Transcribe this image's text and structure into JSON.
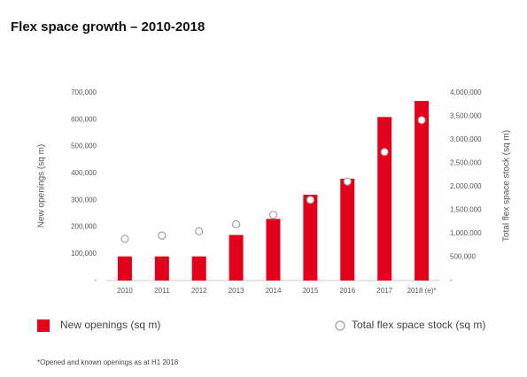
{
  "chart_data": {
    "type": "bar",
    "title": "Flex space growth – 2010-2018",
    "categories": [
      "2010",
      "2011",
      "2012",
      "2013",
      "2014",
      "2015",
      "2016",
      "2017",
      "2018 (e)*"
    ],
    "series": [
      {
        "name": "New openings (sq m)",
        "type": "bar",
        "color": "#e2001a",
        "values": [
          90000,
          90000,
          90000,
          170000,
          230000,
          320000,
          380000,
          610000,
          670000
        ]
      },
      {
        "name": "Total flex space stock (sq m)",
        "type": "scatter",
        "color": "#a0a0a0",
        "axis": "y2",
        "values": [
          890000,
          960000,
          1050000,
          1200000,
          1400000,
          1720000,
          2110000,
          2740000,
          3420000
        ]
      }
    ],
    "ylabel": "New openings (sq m)",
    "y2label": "Total flex space stock (sq m)",
    "ylim": [
      0,
      700000
    ],
    "yticks": [
      {
        "value": 0,
        "label": "-"
      },
      {
        "value": 100000,
        "label": "100,000"
      },
      {
        "value": 200000,
        "label": "200,000"
      },
      {
        "value": 300000,
        "label": "300,000"
      },
      {
        "value": 400000,
        "label": "400,000"
      },
      {
        "value": 500000,
        "label": "500,000"
      },
      {
        "value": 600000,
        "label": "600,000"
      },
      {
        "value": 700000,
        "label": "700,000"
      }
    ],
    "y2lim": [
      0,
      4000000
    ],
    "y2ticks": [
      {
        "value": 0,
        "label": "-"
      },
      {
        "value": 500000,
        "label": "500,000"
      },
      {
        "value": 1000000,
        "label": "1,000,000"
      },
      {
        "value": 1500000,
        "label": "1,500,000"
      },
      {
        "value": 2000000,
        "label": "2,000,000"
      },
      {
        "value": 2500000,
        "label": "2,500,000"
      },
      {
        "value": 3000000,
        "label": "3,000,000"
      },
      {
        "value": 3500000,
        "label": "3,500,000"
      },
      {
        "value": 4000000,
        "label": "4,000,000"
      }
    ],
    "grid": false,
    "footnote": "*Opened and known openings as at H1 2018"
  }
}
